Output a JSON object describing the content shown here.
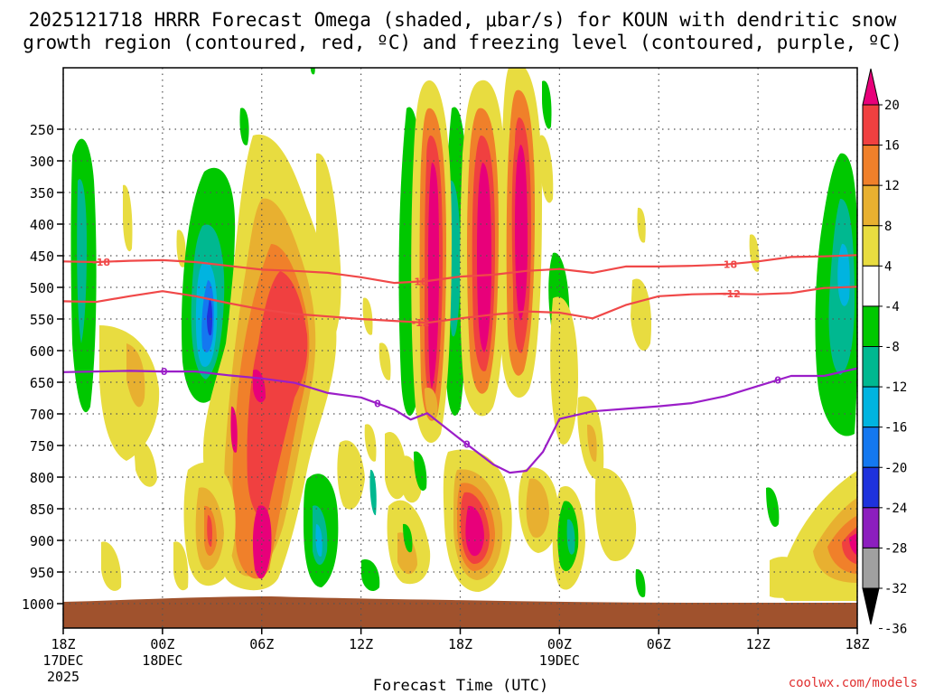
{
  "chart_data": {
    "type": "heatmap",
    "title_line1": "2025121718 HRRR Forecast Omega (shaded, μbar/s) for KOUN with dendritic snow",
    "title_line2": "growth region (contoured, red, ºC) and freezing level (contoured, purple, ºC)",
    "xlabel": "Forecast Time (UTC)",
    "credit": "coolwx.com/models",
    "x_range_hours": [
      0,
      48
    ],
    "y_range_hpa": [
      150,
      1050
    ],
    "y_ticks": [
      250,
      300,
      350,
      400,
      450,
      500,
      550,
      600,
      650,
      700,
      750,
      800,
      850,
      900,
      950,
      1000
    ],
    "x_ticks": [
      {
        "hour": 0,
        "label": "18Z",
        "sub1": "17DEC",
        "sub2": "2025"
      },
      {
        "hour": 6,
        "label": "00Z",
        "sub1": "18DEC",
        "sub2": ""
      },
      {
        "hour": 12,
        "label": "06Z",
        "sub1": "",
        "sub2": ""
      },
      {
        "hour": 18,
        "label": "12Z",
        "sub1": "",
        "sub2": ""
      },
      {
        "hour": 24,
        "label": "18Z",
        "sub1": "",
        "sub2": ""
      },
      {
        "hour": 30,
        "label": "00Z",
        "sub1": "19DEC",
        "sub2": ""
      },
      {
        "hour": 36,
        "label": "06Z",
        "sub1": "",
        "sub2": ""
      },
      {
        "hour": 42,
        "label": "12Z",
        "sub1": "",
        "sub2": ""
      },
      {
        "hour": 48,
        "label": "18Z",
        "sub1": "",
        "sub2": ""
      }
    ],
    "colorbar": {
      "labels": [
        "20",
        "16",
        "12",
        "8",
        "4",
        "-4",
        "-8",
        "-12",
        "-16",
        "-20",
        "-24",
        "-28",
        "-32",
        "-36"
      ],
      "colors": [
        "#e8007a",
        "#f04040",
        "#f0802a",
        "#e8b030",
        "#e8dc40",
        "#ffffff",
        "#00c800",
        "#00b890",
        "#00b4e0",
        "#1478f0",
        "#1e32dc",
        "#8c1ebe",
        "#a0a0a0",
        "#000000"
      ]
    },
    "series": [
      {
        "name": "-18",
        "color": "#f04848",
        "points": [
          [
            0,
            459
          ],
          [
            2,
            460
          ],
          [
            4,
            458
          ],
          [
            6,
            457
          ],
          [
            8,
            460
          ],
          [
            10,
            466
          ],
          [
            12,
            472
          ],
          [
            14,
            474
          ],
          [
            16,
            477
          ],
          [
            18,
            484
          ],
          [
            20,
            493
          ],
          [
            22,
            490
          ],
          [
            24,
            483
          ],
          [
            26,
            480
          ],
          [
            28,
            474
          ],
          [
            30,
            471
          ],
          [
            32,
            477
          ],
          [
            34,
            467
          ],
          [
            36,
            467
          ],
          [
            38,
            466
          ],
          [
            40,
            464
          ],
          [
            42,
            459
          ],
          [
            44,
            452
          ],
          [
            46,
            451
          ],
          [
            48,
            449
          ]
        ],
        "labels": [
          [
            2.3,
            "-18"
          ],
          [
            21.5,
            "-18"
          ],
          [
            40.2,
            "-18"
          ]
        ]
      },
      {
        "name": "-12",
        "color": "#f04848",
        "points": [
          [
            0,
            522
          ],
          [
            2,
            523
          ],
          [
            4,
            514
          ],
          [
            6,
            506
          ],
          [
            8,
            514
          ],
          [
            10,
            525
          ],
          [
            12,
            535
          ],
          [
            14,
            542
          ],
          [
            16,
            546
          ],
          [
            18,
            550
          ],
          [
            20,
            553
          ],
          [
            22,
            556
          ],
          [
            24,
            549
          ],
          [
            26,
            543
          ],
          [
            28,
            538
          ],
          [
            30,
            540
          ],
          [
            32,
            549
          ],
          [
            34,
            528
          ],
          [
            36,
            514
          ],
          [
            38,
            511
          ],
          [
            40,
            510
          ],
          [
            42,
            511
          ],
          [
            44,
            509
          ],
          [
            46,
            501
          ],
          [
            48,
            499
          ]
        ],
        "labels": [
          [
            21.6,
            "-12"
          ],
          [
            40.4,
            "-12"
          ]
        ]
      },
      {
        "name": "0",
        "color": "#9b1ec8",
        "points": [
          [
            0,
            634
          ],
          [
            2,
            633
          ],
          [
            4,
            632
          ],
          [
            6,
            633
          ],
          [
            8,
            633
          ],
          [
            10,
            639
          ],
          [
            12,
            644
          ],
          [
            14,
            651
          ],
          [
            16,
            667
          ],
          [
            18,
            674
          ],
          [
            20,
            693
          ],
          [
            21,
            709
          ],
          [
            22,
            699
          ],
          [
            24,
            740
          ],
          [
            26,
            780
          ],
          [
            27,
            793
          ],
          [
            28,
            790
          ],
          [
            29,
            760
          ],
          [
            30,
            708
          ],
          [
            32,
            696
          ],
          [
            34,
            692
          ],
          [
            36,
            688
          ],
          [
            38,
            683
          ],
          [
            40,
            672
          ],
          [
            42,
            656
          ],
          [
            44,
            640
          ],
          [
            46,
            640
          ],
          [
            48,
            628
          ]
        ],
        "labels": [
          [
            6.1,
            "0"
          ],
          [
            19,
            "0"
          ],
          [
            24.4,
            "0"
          ],
          [
            43.2,
            "0"
          ]
        ]
      }
    ]
  }
}
